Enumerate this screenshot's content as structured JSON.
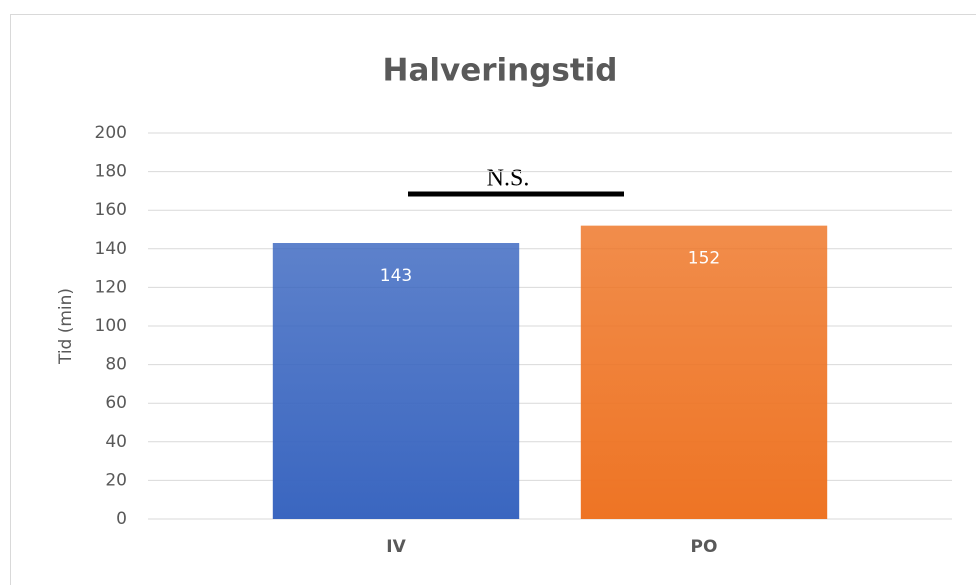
{
  "chart_data": {
    "type": "bar",
    "title": "Halveringstid",
    "ylabel": "Tid (min)",
    "categories": [
      "IV",
      "PO"
    ],
    "values": [
      143,
      152
    ],
    "colors": [
      "#3a66c0",
      "#ee7424"
    ],
    "ylim": [
      0,
      200
    ],
    "yticks": [
      0,
      20,
      40,
      60,
      80,
      100,
      120,
      140,
      160,
      180,
      200
    ],
    "grid": true,
    "annotations": [
      "N.S."
    ]
  }
}
